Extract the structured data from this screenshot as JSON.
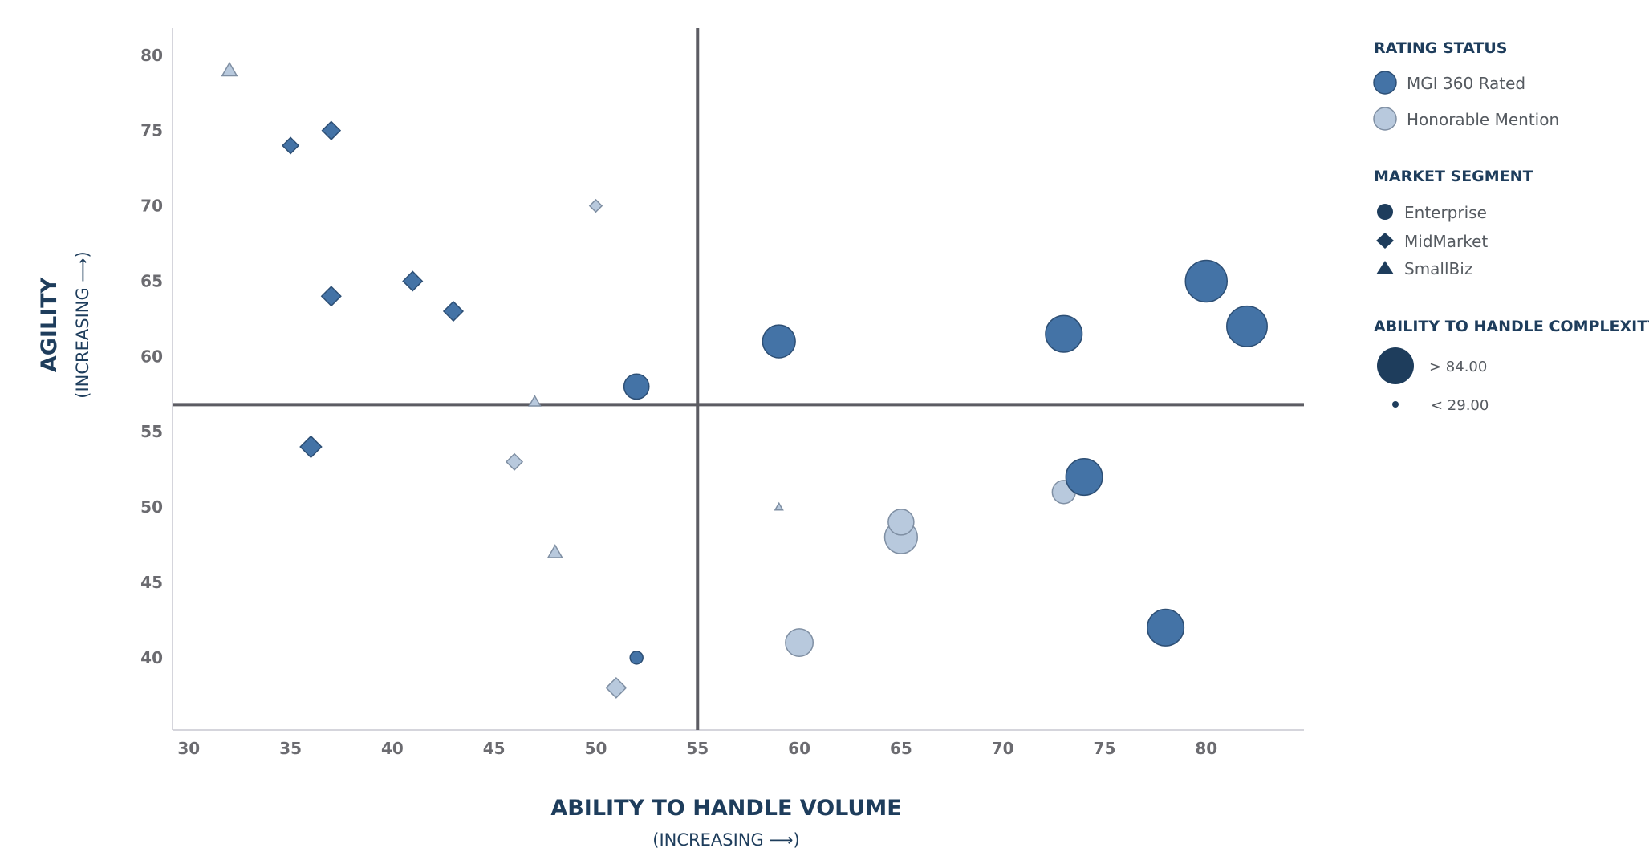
{
  "chart_data": {
    "type": "scatter",
    "xlabel": "ABILITY TO HANDLE VOLUME",
    "xlabel_sub": "(INCREASING ⟶)",
    "ylabel": "AGILITY",
    "ylabel_sub": "(INCREASING ⟶)",
    "xlim": [
      29.2,
      84.8
    ],
    "ylim": [
      35.2,
      81.8
    ],
    "x_ticks": [
      30,
      35,
      40,
      45,
      50,
      55,
      60,
      65,
      70,
      75,
      80
    ],
    "y_ticks": [
      40,
      45,
      50,
      55,
      60,
      65,
      70,
      75,
      80
    ],
    "quadrant_lines": {
      "x": 55,
      "y": 56.8
    },
    "grid": false,
    "colors": {
      "rated": "#4473a6",
      "honorable": "#b8c9dd",
      "legend_dark": "#1e3d5c",
      "quadrant": "#5c5c63",
      "axis": "#d5d5dc"
    },
    "points": [
      {
        "x": 32,
        "y": 79,
        "segment": "SmallBiz",
        "status": "Honorable Mention",
        "complexity": 40
      },
      {
        "x": 35,
        "y": 74,
        "segment": "MidMarket",
        "status": "MGI 360 Rated",
        "complexity": 44
      },
      {
        "x": 37,
        "y": 75,
        "segment": "MidMarket",
        "status": "MGI 360 Rated",
        "complexity": 47
      },
      {
        "x": 50,
        "y": 70,
        "segment": "MidMarket",
        "status": "Honorable Mention",
        "complexity": 38
      },
      {
        "x": 37,
        "y": 64,
        "segment": "MidMarket",
        "status": "MGI 360 Rated",
        "complexity": 49
      },
      {
        "x": 41,
        "y": 65,
        "segment": "MidMarket",
        "status": "MGI 360 Rated",
        "complexity": 49
      },
      {
        "x": 43,
        "y": 63,
        "segment": "MidMarket",
        "status": "MGI 360 Rated",
        "complexity": 49
      },
      {
        "x": 47,
        "y": 57,
        "segment": "SmallBiz",
        "status": "Honorable Mention",
        "complexity": 35
      },
      {
        "x": 52,
        "y": 58,
        "segment": "Enterprise",
        "status": "MGI 360 Rated",
        "complexity": 58
      },
      {
        "x": 59,
        "y": 61,
        "segment": "Enterprise",
        "status": "MGI 360 Rated",
        "complexity": 70
      },
      {
        "x": 73,
        "y": 61.5,
        "segment": "Enterprise",
        "status": "MGI 360 Rated",
        "complexity": 76
      },
      {
        "x": 80,
        "y": 65,
        "segment": "Enterprise",
        "status": "MGI 360 Rated",
        "complexity": 84
      },
      {
        "x": 82,
        "y": 62,
        "segment": "Enterprise",
        "status": "MGI 360 Rated",
        "complexity": 82
      },
      {
        "x": 36,
        "y": 54,
        "segment": "MidMarket",
        "status": "MGI 360 Rated",
        "complexity": 52
      },
      {
        "x": 46,
        "y": 53,
        "segment": "MidMarket",
        "status": "Honorable Mention",
        "complexity": 44
      },
      {
        "x": 48,
        "y": 47,
        "segment": "SmallBiz",
        "status": "Honorable Mention",
        "complexity": 39
      },
      {
        "x": 59,
        "y": 50,
        "segment": "SmallBiz",
        "status": "Honorable Mention",
        "complexity": 30
      },
      {
        "x": 65,
        "y": 48,
        "segment": "Enterprise",
        "status": "Honorable Mention",
        "complexity": 70
      },
      {
        "x": 65,
        "y": 49,
        "segment": "Enterprise",
        "status": "Honorable Mention",
        "complexity": 59
      },
      {
        "x": 73,
        "y": 51,
        "segment": "Enterprise",
        "status": "Honorable Mention",
        "complexity": 55
      },
      {
        "x": 74,
        "y": 52,
        "segment": "Enterprise",
        "status": "MGI 360 Rated",
        "complexity": 76
      },
      {
        "x": 78,
        "y": 42,
        "segment": "Enterprise",
        "status": "MGI 360 Rated",
        "complexity": 76
      },
      {
        "x": 52,
        "y": 40,
        "segment": "Enterprise",
        "status": "MGI 360 Rated",
        "complexity": 39
      },
      {
        "x": 51,
        "y": 38,
        "segment": "MidMarket",
        "status": "Honorable Mention",
        "complexity": 50
      },
      {
        "x": 60,
        "y": 41,
        "segment": "Enterprise",
        "status": "Honorable Mention",
        "complexity": 62
      }
    ],
    "legend": {
      "placement": "right",
      "rating_status": {
        "title": "RATING STATUS",
        "items": [
          {
            "label": "MGI 360 Rated",
            "status": "MGI 360 Rated"
          },
          {
            "label": "Honorable Mention",
            "status": "Honorable Mention"
          }
        ]
      },
      "market_segment": {
        "title": "MARKET SEGMENT",
        "items": [
          {
            "label": "Enterprise",
            "shape": "circle"
          },
          {
            "label": "MidMarket",
            "shape": "diamond"
          },
          {
            "label": "SmallBiz",
            "shape": "triangle"
          }
        ]
      },
      "complexity": {
        "title": "ABILITY TO HANDLE COMPLEXITY",
        "items": [
          {
            "label": "> 84.00",
            "value": 84
          },
          {
            "label": "< 29.00",
            "value": 29
          }
        ]
      }
    }
  }
}
